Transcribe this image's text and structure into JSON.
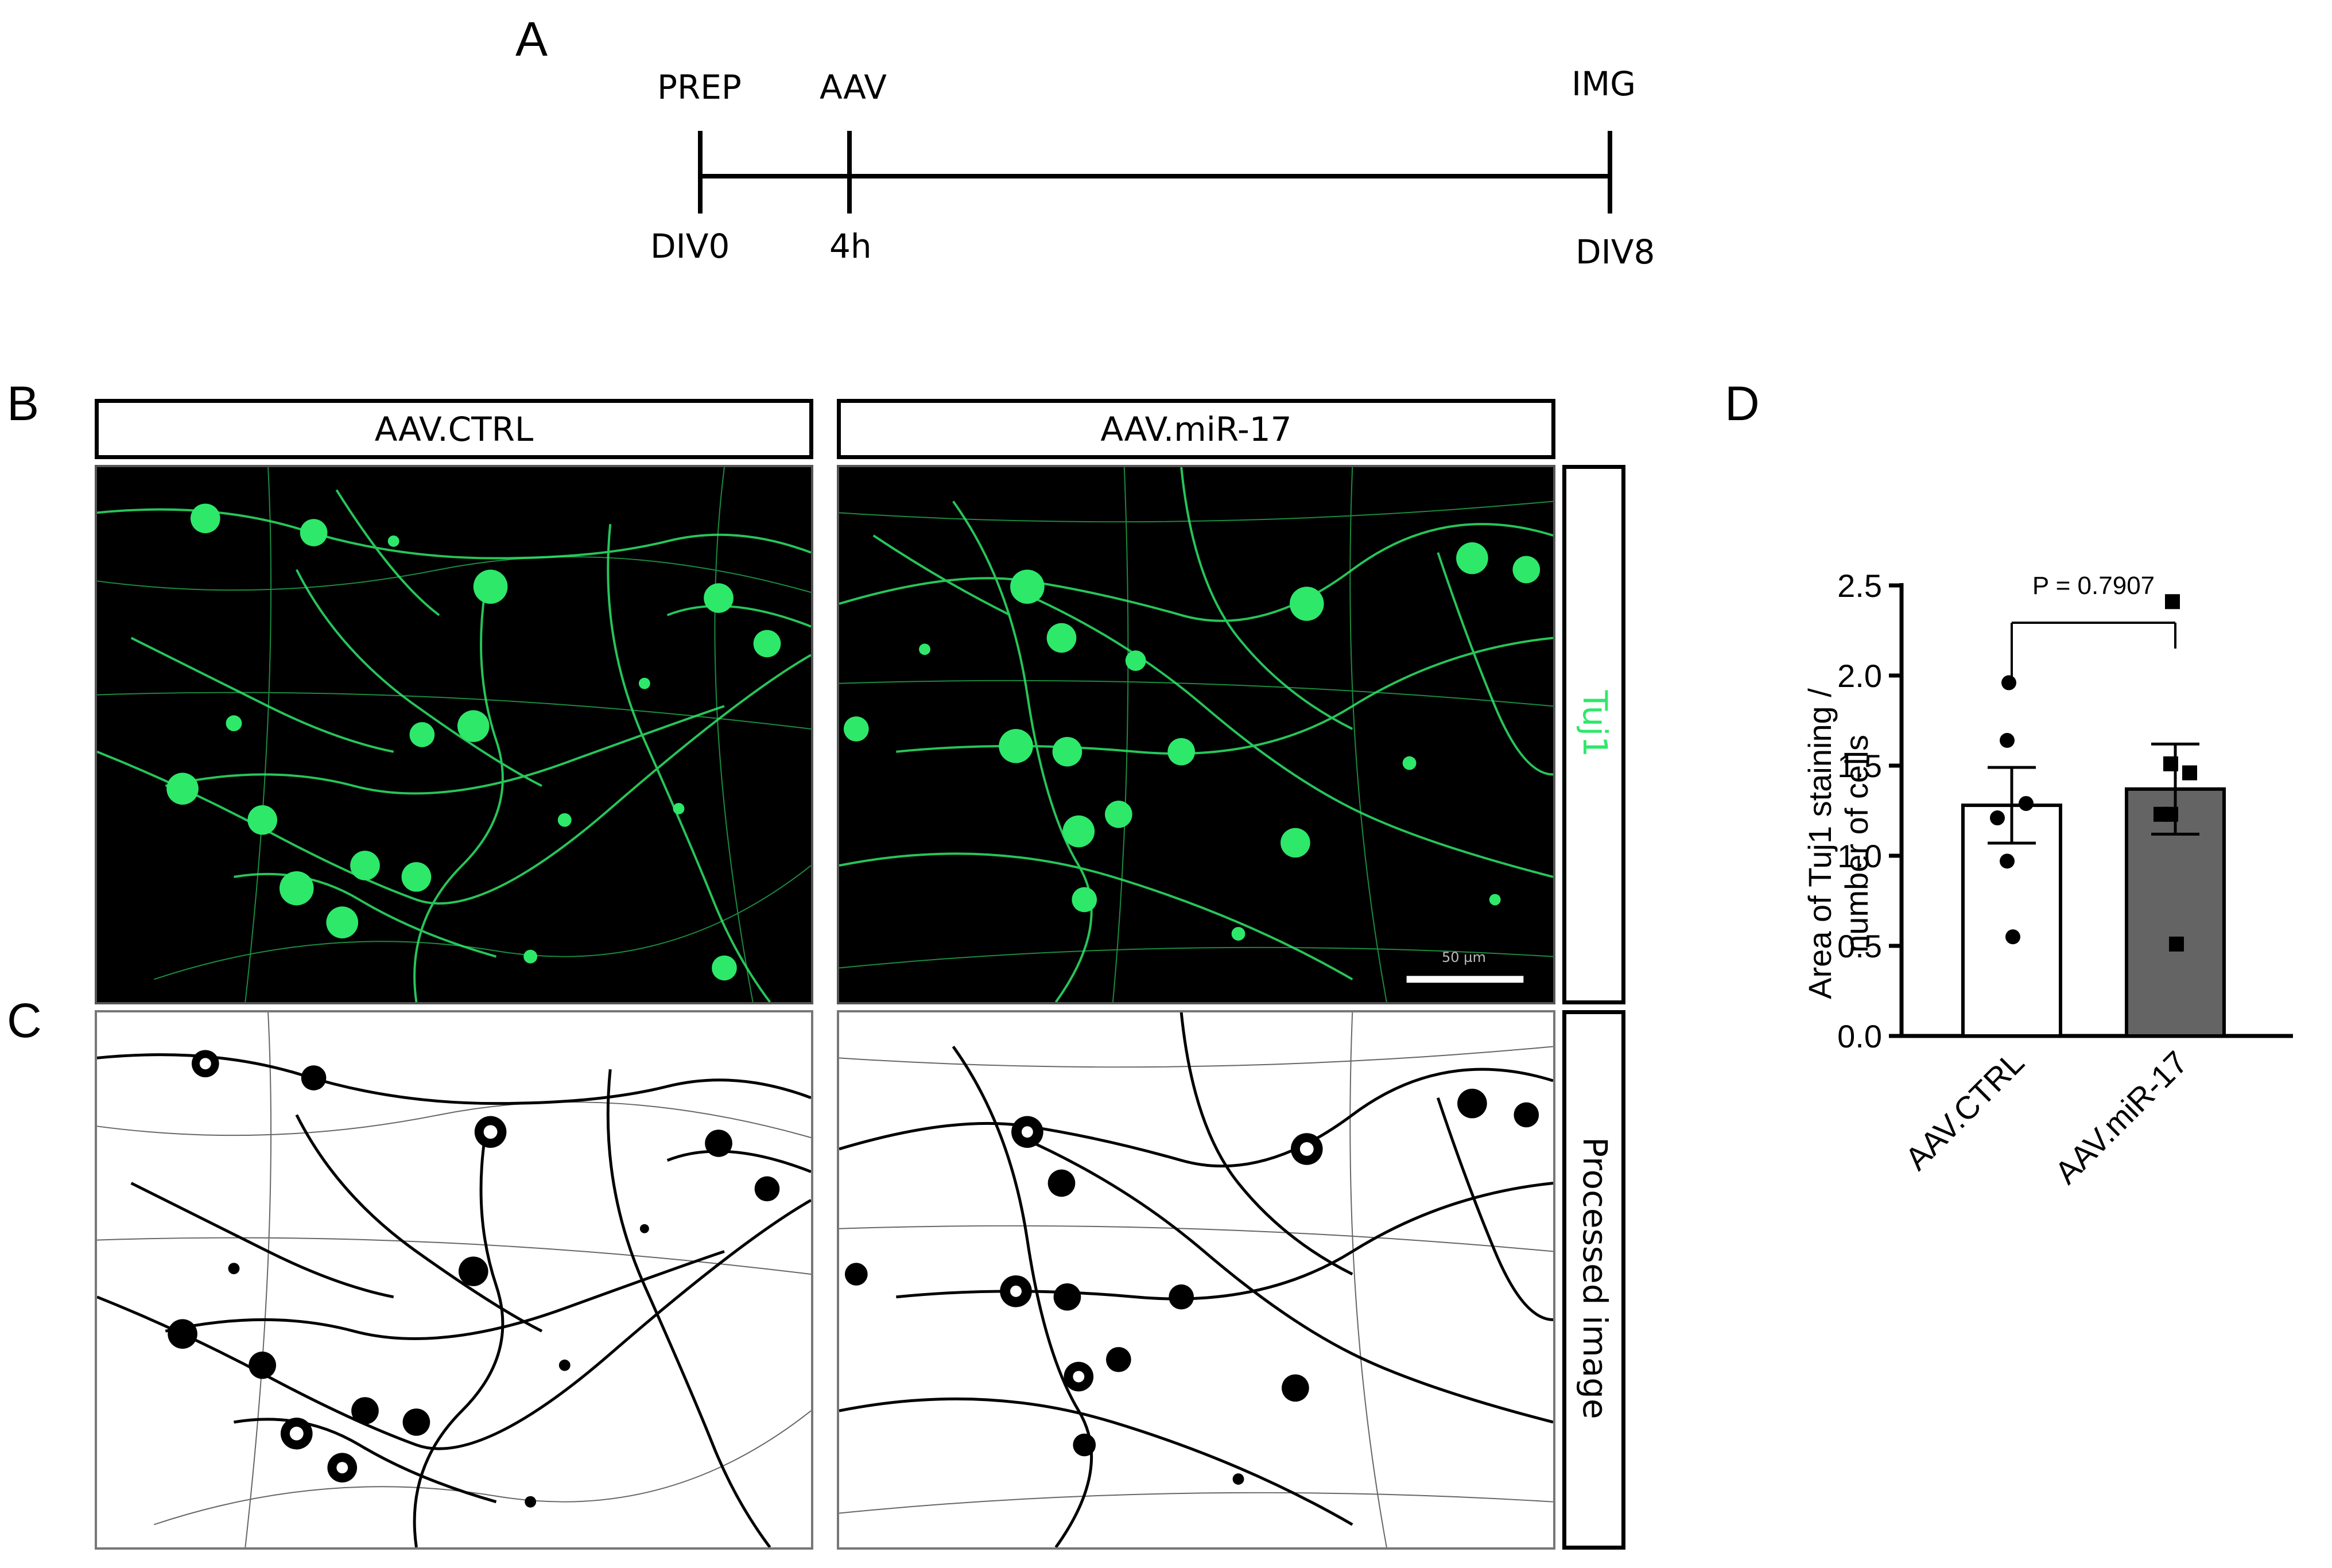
{
  "panels": {
    "a": "A",
    "b": "B",
    "c": "C",
    "d": "D"
  },
  "timeline": {
    "events": [
      {
        "top": "PREP",
        "bottom": "DIV0"
      },
      {
        "top": "AAV",
        "bottom": "4h"
      },
      {
        "top": "IMG",
        "bottom": "DIV8"
      }
    ]
  },
  "conditions": [
    "AAV.CTRL",
    "AAV.miR-17"
  ],
  "stain_label": "Tuj1",
  "processed_label": "Processed image",
  "scale_bar_label": "50 µm",
  "colors": {
    "tuj1_green": "#2ee86a",
    "mir17_bar": "#646464",
    "ctrl_bar": "#ffffff"
  },
  "chart_data": {
    "type": "bar",
    "categories": [
      "AAV.CTRL",
      "AAV.miR-17"
    ],
    "values": [
      1.28,
      1.37
    ],
    "error": [
      0.21,
      0.25
    ],
    "points": [
      [
        1.96,
        1.64,
        1.29,
        1.21,
        0.97,
        0.55
      ],
      [
        2.41,
        1.51,
        1.46,
        1.23,
        1.23,
        0.51
      ]
    ],
    "point_markers": [
      "circle",
      "square"
    ],
    "ylabel": "Area of Tuj1 staining / number of cells",
    "ylabel_lines": [
      "Area of Tuj1 staining /",
      "number of cells"
    ],
    "ylim": [
      0,
      2.5
    ],
    "yticks": [
      "0.0",
      "0.5",
      "1.0",
      "1.5",
      "2.0",
      "2.5"
    ],
    "annotation": "P = 0.7907"
  }
}
